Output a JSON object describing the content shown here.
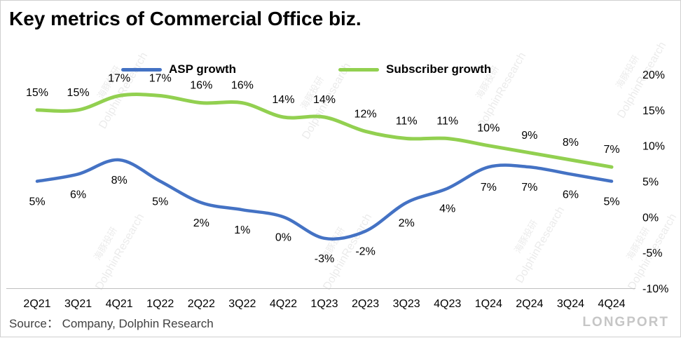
{
  "title": "Key metrics of Commercial Office biz.",
  "source": "Source：  Company, Dolphin Research",
  "brand": "LONGPORT",
  "watermark": {
    "cn": "海豚投研",
    "en": "DolphinResearch"
  },
  "legend": [
    {
      "label": "ASP growth",
      "color": "#4472C4"
    },
    {
      "label": "Subscriber growth",
      "color": "#92D050"
    }
  ],
  "chart_data": {
    "type": "line",
    "title": "Key metrics of Commercial Office biz.",
    "categories": [
      "2Q21",
      "3Q21",
      "4Q21",
      "1Q22",
      "2Q22",
      "3Q22",
      "4Q22",
      "1Q23",
      "2Q23",
      "3Q23",
      "4Q23",
      "1Q24",
      "2Q24",
      "3Q24",
      "4Q24"
    ],
    "series": [
      {
        "name": "ASP growth",
        "color": "#4472C4",
        "stroke_width": 4.5,
        "label_position": "below",
        "values": [
          5,
          6,
          8,
          5,
          2,
          1,
          0,
          -3,
          -2,
          2,
          4,
          7,
          7,
          6,
          5
        ]
      },
      {
        "name": "Subscriber growth",
        "color": "#92D050",
        "stroke_width": 5,
        "label_position": "above",
        "values": [
          15,
          15,
          17,
          17,
          16,
          16,
          14,
          14,
          12,
          11,
          11,
          10,
          9,
          8,
          7
        ]
      }
    ],
    "ylim": [
      -10,
      20
    ],
    "yticks": [
      20,
      15,
      10,
      5,
      0,
      -5,
      -10
    ],
    "ytick_format": "percent",
    "yaxis_side": "right",
    "legend_position": "top",
    "grid": false,
    "data_labels": true
  }
}
